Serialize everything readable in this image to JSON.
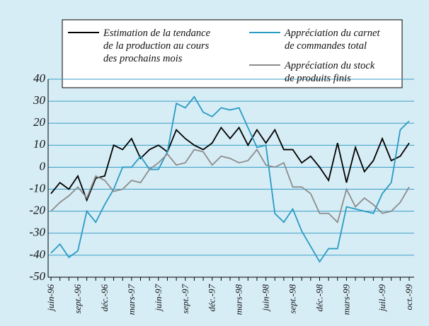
{
  "chart_data": {
    "type": "line",
    "categories": [
      "juin-96",
      null,
      null,
      "sept.-96",
      null,
      null,
      "déc.-96",
      null,
      null,
      "mars-97",
      null,
      null,
      "juin-97",
      null,
      null,
      "sept.-97",
      null,
      null,
      "déc.-97",
      null,
      null,
      "mars-98",
      null,
      null,
      "juin-98",
      null,
      null,
      "sept.-98",
      null,
      null,
      "déc.-98",
      null,
      null,
      "mars-99",
      null,
      null,
      null,
      "juil.-99",
      null,
      null,
      "oct.-99"
    ],
    "series": [
      {
        "name": "Estimation de la tendance\nde la production au cours\ndes prochains mois",
        "color": "#000000",
        "values": [
          -12,
          -7,
          -10,
          -4,
          -15,
          -5,
          -4,
          10,
          8,
          13,
          4,
          8,
          10,
          7,
          17,
          13,
          10,
          8,
          11,
          18,
          13,
          18,
          10,
          17,
          11,
          17,
          8,
          8,
          2,
          5,
          0,
          -6,
          11,
          -7,
          9,
          -2,
          3,
          13,
          3,
          5,
          11
        ]
      },
      {
        "name": "Appréciation du carnet\nde commandes total",
        "color": "#2a9bc4",
        "values": [
          -39,
          -35,
          -41,
          -38,
          -20,
          -25,
          -17,
          -10,
          0,
          0,
          5,
          -1,
          -1,
          7,
          29,
          27,
          32,
          25,
          23,
          27,
          26,
          27,
          18,
          9,
          10,
          -21,
          -25,
          -19,
          -29,
          -36,
          -43,
          -37,
          -37,
          -18,
          -19,
          -20,
          -21,
          -12,
          -7,
          17,
          21
        ]
      },
      {
        "name": "Appréciation du stock\nde produits finis",
        "color": "#8c8c8c",
        "values": [
          -20,
          -16,
          -13,
          -9,
          -14,
          -4,
          -6,
          -11,
          -10,
          -6,
          -7,
          -1,
          2,
          6,
          1,
          2,
          8,
          7,
          1,
          5,
          4,
          2,
          3,
          8,
          1,
          0,
          2,
          -9,
          -9,
          -12,
          -21,
          -21,
          -25,
          -10,
          -18,
          -14,
          -17,
          -21,
          -20,
          -16,
          -9
        ]
      }
    ],
    "ylim": [
      -50,
      40
    ],
    "yticks": [
      -50,
      -40,
      -30,
      -20,
      -10,
      0,
      10,
      20,
      30,
      40
    ],
    "grid": true
  }
}
